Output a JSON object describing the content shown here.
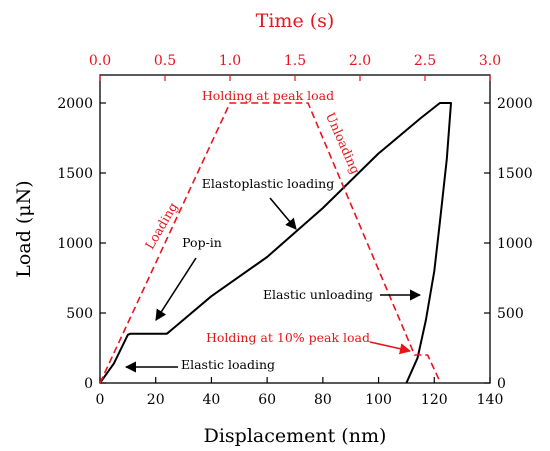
{
  "chart_data": {
    "type": "line",
    "title": "",
    "xlabel": "Displacement (nm)",
    "ylabel": "Load (μN)",
    "x2label": "Time (s)",
    "xlim": [
      0,
      140
    ],
    "ylim": [
      0,
      2200
    ],
    "x2lim": [
      0,
      3.0
    ],
    "xticks": [
      "0",
      "20",
      "40",
      "60",
      "80",
      "100",
      "120",
      "140"
    ],
    "yticks": [
      "0",
      "500",
      "1000",
      "1500",
      "2000"
    ],
    "y2ticks": [
      "0",
      "500",
      "1000",
      "1500",
      "2000"
    ],
    "x2ticks": [
      "0.0",
      "0.5",
      "1.0",
      "1.5",
      "2.0",
      "2.5",
      "3.0"
    ],
    "grid": false,
    "colors": {
      "displacement_curve": "#000000",
      "time_curve": "#e8141b"
    },
    "series": [
      {
        "axis": "displacement",
        "points": [
          [
            0,
            0
          ],
          [
            5,
            140
          ],
          [
            10,
            345
          ],
          [
            11,
            352
          ],
          [
            24,
            352
          ],
          [
            26,
            385
          ],
          [
            40,
            620
          ],
          [
            60,
            900
          ],
          [
            80,
            1250
          ],
          [
            100,
            1640
          ],
          [
            115,
            1890
          ],
          [
            122,
            2000
          ],
          [
            126,
            2000
          ],
          [
            124.5,
            1600
          ],
          [
            122,
            1150
          ],
          [
            120,
            800
          ],
          [
            117,
            450
          ],
          [
            114,
            180
          ],
          [
            110,
            0
          ]
        ]
      },
      {
        "axis": "time",
        "points": [
          [
            0,
            0
          ],
          [
            1.0,
            2000
          ],
          [
            1.6,
            2000
          ],
          [
            2.42,
            200
          ],
          [
            2.52,
            200
          ],
          [
            2.62,
            0
          ]
        ]
      }
    ],
    "annotations": [
      {
        "text": "Holding at peak load"
      },
      {
        "text": "Unloading"
      },
      {
        "text": "Loading"
      },
      {
        "text": "Elastoplastic loading"
      },
      {
        "text": "Pop-in"
      },
      {
        "text": "Elastic unloading"
      },
      {
        "text": "Holding at 10% peak load"
      },
      {
        "text": "Elastic loading"
      }
    ]
  }
}
